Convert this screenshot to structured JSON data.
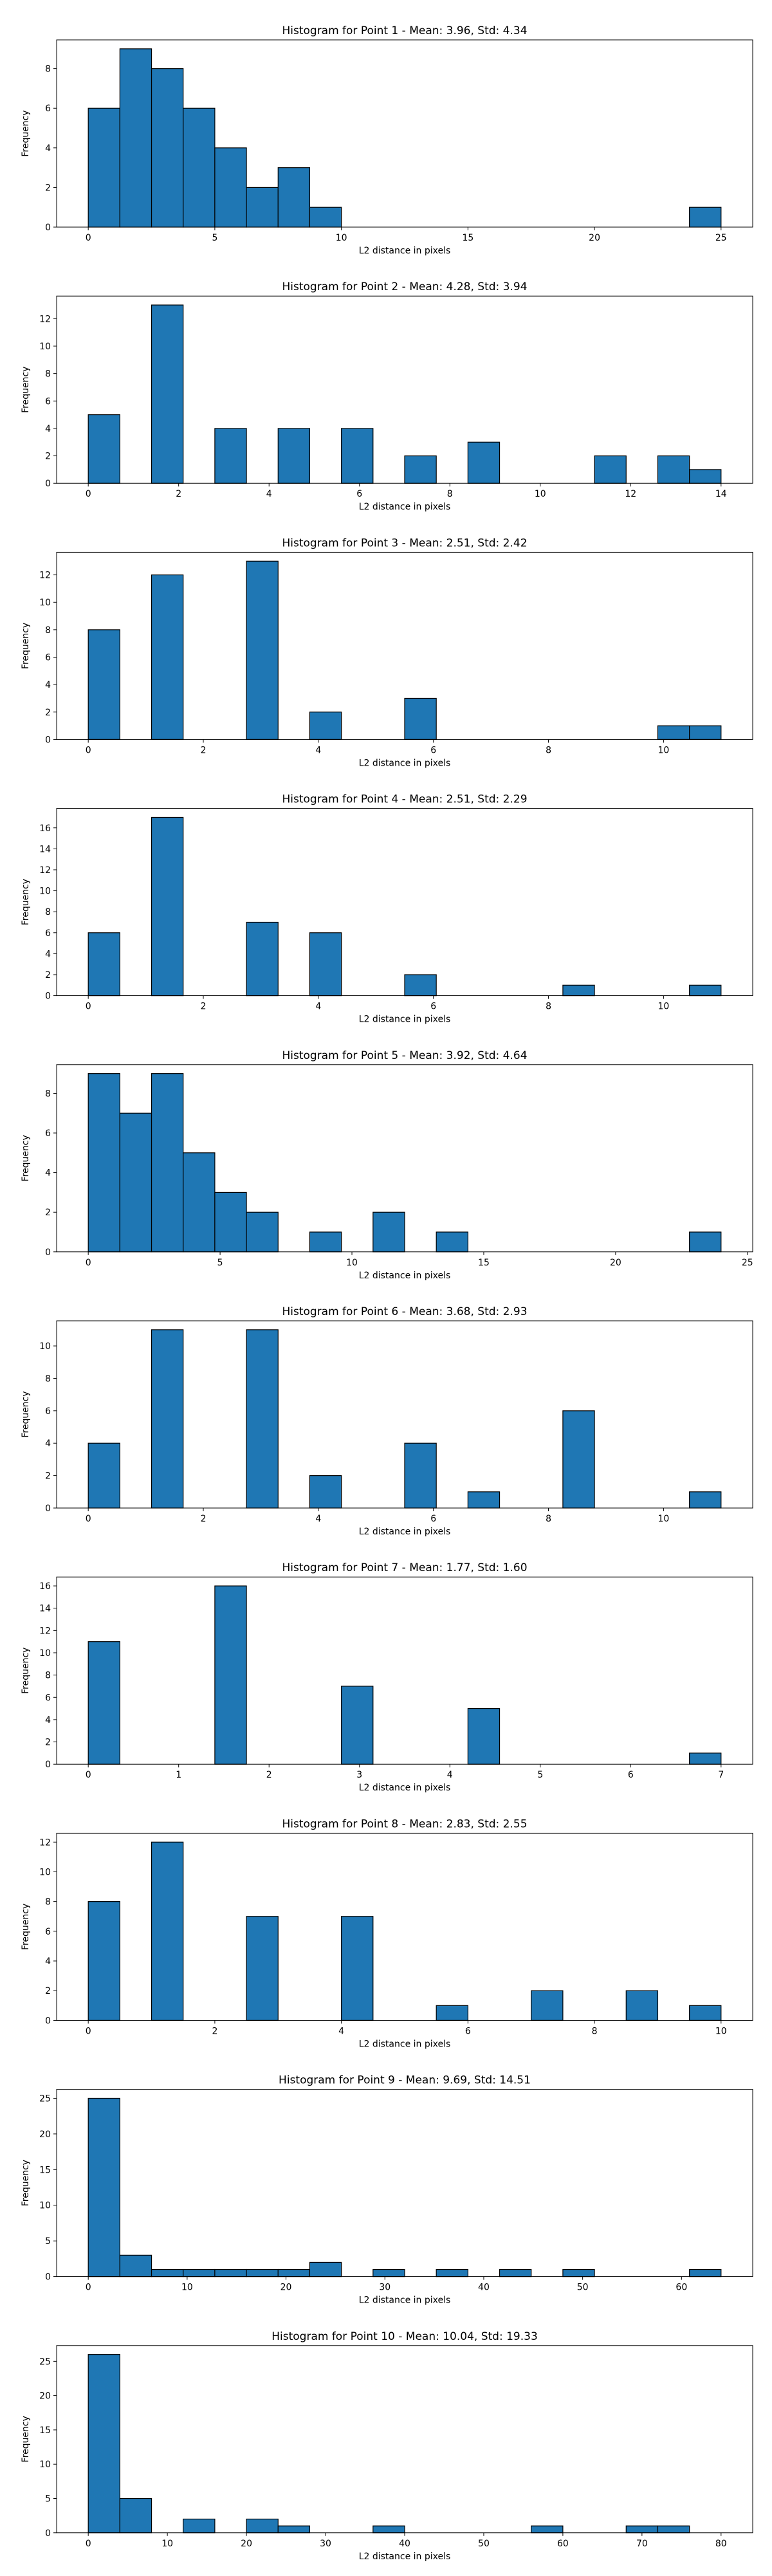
{
  "bar_color": "#1f77b4",
  "edge_color": "#000000",
  "chart_data": [
    {
      "type": "bar",
      "title": "Histogram for Point 1 - Mean: 3.96, Std: 4.34",
      "xlabel": "L2 distance in pixels",
      "ylabel": "Frequency",
      "xlim": [
        -1.25,
        26.25
      ],
      "ylim": [
        0,
        9.45
      ],
      "xticks": [
        0,
        5,
        10,
        15,
        20,
        25
      ],
      "yticks": [
        0,
        2,
        4,
        6,
        8
      ],
      "bin_edges": [
        0,
        1.25,
        2.5,
        3.75,
        5,
        6.25,
        7.5,
        8.75,
        10,
        11.25,
        12.5,
        13.75,
        15,
        16.25,
        17.5,
        18.75,
        20,
        21.25,
        22.5,
        23.75,
        25
      ],
      "values": [
        6,
        9,
        8,
        6,
        4,
        2,
        3,
        1,
        0,
        0,
        0,
        0,
        0,
        0,
        0,
        0,
        0,
        0,
        0,
        1
      ]
    },
    {
      "type": "bar",
      "title": "Histogram for Point 2 - Mean: 4.28, Std: 3.94",
      "xlabel": "L2 distance in pixels",
      "ylabel": "Frequency",
      "xlim": [
        -0.7,
        14.7
      ],
      "ylim": [
        0,
        13.65
      ],
      "xticks": [
        0,
        2,
        4,
        6,
        8,
        10,
        12,
        14
      ],
      "yticks": [
        0,
        2,
        4,
        6,
        8,
        10,
        12
      ],
      "bin_edges": [
        0,
        0.7,
        1.4,
        2.1,
        2.8,
        3.5,
        4.2,
        4.9,
        5.6,
        6.3,
        7.0,
        7.7,
        8.4,
        9.1,
        9.8,
        10.5,
        11.2,
        11.9,
        12.6,
        13.3,
        14.0
      ],
      "values": [
        5,
        0,
        13,
        0,
        4,
        0,
        4,
        0,
        4,
        0,
        2,
        0,
        3,
        0,
        0,
        0,
        2,
        0,
        2,
        1
      ]
    },
    {
      "type": "bar",
      "title": "Histogram for Point 3 - Mean: 2.51, Std: 2.42",
      "xlabel": "L2 distance in pixels",
      "ylabel": "Frequency",
      "xlim": [
        -0.55,
        11.55
      ],
      "ylim": [
        0,
        13.65
      ],
      "xticks": [
        0,
        2,
        4,
        6,
        8,
        10
      ],
      "yticks": [
        0,
        2,
        4,
        6,
        8,
        10,
        12
      ],
      "bin_edges": [
        0,
        0.55,
        1.1,
        1.65,
        2.2,
        2.75,
        3.3,
        3.85,
        4.4,
        4.95,
        5.5,
        6.05,
        6.6,
        7.15,
        7.7,
        8.25,
        8.8,
        9.35,
        9.9,
        10.45,
        11.0
      ],
      "values": [
        8,
        0,
        12,
        0,
        0,
        13,
        0,
        2,
        0,
        0,
        3,
        0,
        0,
        0,
        0,
        0,
        0,
        0,
        1,
        1
      ]
    },
    {
      "type": "bar",
      "title": "Histogram for Point 4 - Mean: 2.51, Std: 2.29",
      "xlabel": "L2 distance in pixels",
      "ylabel": "Frequency",
      "xlim": [
        -0.55,
        11.55
      ],
      "ylim": [
        0,
        17.85
      ],
      "xticks": [
        0,
        2,
        4,
        6,
        8,
        10
      ],
      "yticks": [
        0,
        2,
        4,
        6,
        8,
        10,
        12,
        14,
        16
      ],
      "bin_edges": [
        0,
        0.55,
        1.1,
        1.65,
        2.2,
        2.75,
        3.3,
        3.85,
        4.4,
        4.95,
        5.5,
        6.05,
        6.6,
        7.15,
        7.7,
        8.25,
        8.8,
        9.35,
        9.9,
        10.45,
        11.0
      ],
      "values": [
        6,
        0,
        17,
        0,
        0,
        7,
        0,
        6,
        0,
        0,
        2,
        0,
        0,
        0,
        0,
        1,
        0,
        0,
        0,
        1
      ]
    },
    {
      "type": "bar",
      "title": "Histogram for Point 5 - Mean: 3.92, Std: 4.64",
      "xlabel": "L2 distance in pixels",
      "ylabel": "Frequency",
      "xlim": [
        -1.2,
        25.2
      ],
      "ylim": [
        0,
        9.45
      ],
      "xticks": [
        0,
        5,
        10,
        15,
        20,
        25
      ],
      "yticks": [
        0,
        2,
        4,
        6,
        8
      ],
      "bin_edges": [
        0,
        1.2,
        2.4,
        3.6,
        4.8,
        6.0,
        7.2,
        8.4,
        9.6,
        10.8,
        12.0,
        13.2,
        14.4,
        15.6,
        16.8,
        18.0,
        19.2,
        20.4,
        21.6,
        22.8,
        24.0
      ],
      "values": [
        9,
        7,
        9,
        5,
        3,
        2,
        0,
        1,
        0,
        2,
        0,
        1,
        0,
        0,
        0,
        0,
        0,
        0,
        0,
        1
      ]
    },
    {
      "type": "bar",
      "title": "Histogram for Point 6 - Mean: 3.68, Std: 2.93",
      "xlabel": "L2 distance in pixels",
      "ylabel": "Frequency",
      "xlim": [
        -0.55,
        11.55
      ],
      "ylim": [
        0,
        11.55
      ],
      "xticks": [
        0,
        2,
        4,
        6,
        8,
        10
      ],
      "yticks": [
        0,
        2,
        4,
        6,
        8,
        10
      ],
      "bin_edges": [
        0,
        0.55,
        1.1,
        1.65,
        2.2,
        2.75,
        3.3,
        3.85,
        4.4,
        4.95,
        5.5,
        6.05,
        6.6,
        7.15,
        7.7,
        8.25,
        8.8,
        9.35,
        9.9,
        10.45,
        11.0
      ],
      "values": [
        4,
        0,
        11,
        0,
        0,
        11,
        0,
        2,
        0,
        0,
        4,
        0,
        1,
        0,
        0,
        6,
        0,
        0,
        0,
        1
      ]
    },
    {
      "type": "bar",
      "title": "Histogram for Point 7 - Mean: 1.77, Std: 1.60",
      "xlabel": "L2 distance in pixels",
      "ylabel": "Frequency",
      "xlim": [
        -0.35,
        7.35
      ],
      "ylim": [
        0,
        16.8
      ],
      "xticks": [
        0,
        1,
        2,
        3,
        4,
        5,
        6,
        7
      ],
      "yticks": [
        0,
        2,
        4,
        6,
        8,
        10,
        12,
        14,
        16
      ],
      "bin_edges": [
        0,
        0.35,
        0.7,
        1.05,
        1.4,
        1.75,
        2.1,
        2.45,
        2.8,
        3.15,
        3.5,
        3.85,
        4.2,
        4.55,
        4.9,
        5.25,
        5.6,
        5.95,
        6.3,
        6.65,
        7.0
      ],
      "values": [
        11,
        0,
        0,
        0,
        16,
        0,
        0,
        0,
        7,
        0,
        0,
        0,
        5,
        0,
        0,
        0,
        0,
        0,
        0,
        1
      ]
    },
    {
      "type": "bar",
      "title": "Histogram for Point 8 - Mean: 2.83, Std: 2.55",
      "xlabel": "L2 distance in pixels",
      "ylabel": "Frequency",
      "xlim": [
        -0.5,
        10.5
      ],
      "ylim": [
        0,
        12.6
      ],
      "xticks": [
        0,
        2,
        4,
        6,
        8,
        10
      ],
      "yticks": [
        0,
        2,
        4,
        6,
        8,
        10,
        12
      ],
      "bin_edges": [
        0,
        0.5,
        1.0,
        1.5,
        2.0,
        2.5,
        3.0,
        3.5,
        4.0,
        4.5,
        5.0,
        5.5,
        6.0,
        6.5,
        7.0,
        7.5,
        8.0,
        8.5,
        9.0,
        9.5,
        10.0
      ],
      "values": [
        8,
        0,
        12,
        0,
        0,
        7,
        0,
        0,
        7,
        0,
        0,
        1,
        0,
        0,
        2,
        0,
        0,
        2,
        0,
        1
      ]
    },
    {
      "type": "bar",
      "title": "Histogram for Point 9 - Mean: 9.69, Std: 14.51",
      "xlabel": "L2 distance in pixels",
      "ylabel": "Frequency",
      "xlim": [
        -3.2,
        67.2
      ],
      "ylim": [
        0,
        26.25
      ],
      "xticks": [
        0,
        10,
        20,
        30,
        40,
        50,
        60
      ],
      "yticks": [
        0,
        5,
        10,
        15,
        20,
        25
      ],
      "bin_edges": [
        0,
        3.2,
        6.4,
        9.6,
        12.8,
        16.0,
        19.2,
        22.4,
        25.6,
        28.8,
        32.0,
        35.2,
        38.4,
        41.6,
        44.8,
        48.0,
        51.2,
        54.4,
        57.6,
        60.8,
        64.0
      ],
      "values": [
        25,
        3,
        1,
        1,
        1,
        1,
        1,
        2,
        0,
        1,
        0,
        1,
        0,
        1,
        0,
        1,
        0,
        0,
        0,
        1
      ]
    },
    {
      "type": "bar",
      "title": "Histogram for Point 10 - Mean: 10.04, Std: 19.33",
      "xlabel": "L2 distance in pixels",
      "ylabel": "Frequency",
      "xlim": [
        -4,
        84
      ],
      "ylim": [
        0,
        27.3
      ],
      "xticks": [
        0,
        10,
        20,
        30,
        40,
        50,
        60,
        70,
        80
      ],
      "yticks": [
        0,
        5,
        10,
        15,
        20,
        25
      ],
      "bin_edges": [
        0,
        4,
        8,
        12,
        16,
        20,
        24,
        28,
        32,
        36,
        40,
        44,
        48,
        52,
        56,
        60,
        64,
        68,
        72,
        76,
        80
      ],
      "values": [
        26,
        5,
        0,
        2,
        0,
        2,
        1,
        0,
        0,
        1,
        0,
        0,
        0,
        0,
        1,
        0,
        0,
        1,
        1,
        0
      ]
    }
  ]
}
